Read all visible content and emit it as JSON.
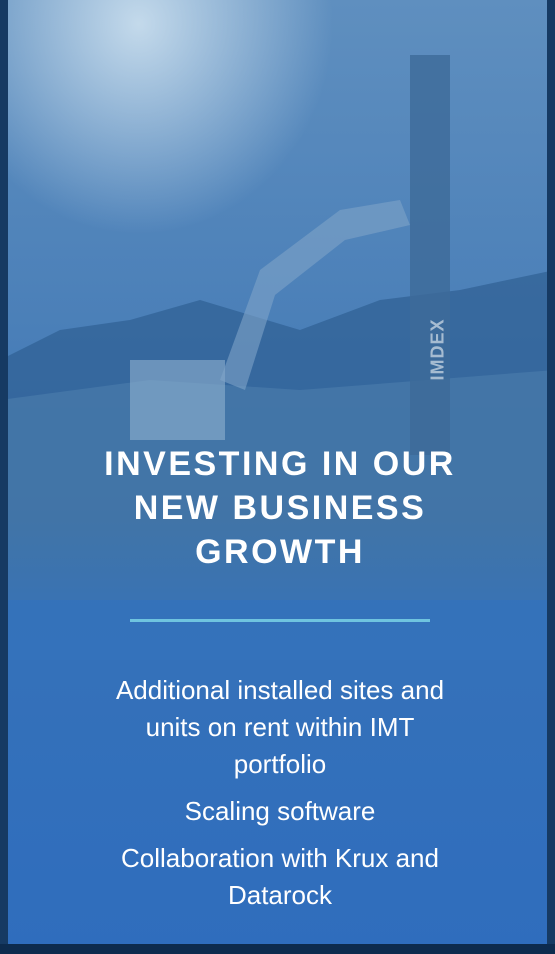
{
  "photo_text": "IMDEX",
  "title_lines": [
    "INVESTING IN OUR",
    "NEW BUSINESS",
    "GROWTH"
  ],
  "points": [
    "Additional installed sites and units on rent within IMT portfolio",
    "Scaling software",
    "Collaboration with Krux and Datarock"
  ]
}
